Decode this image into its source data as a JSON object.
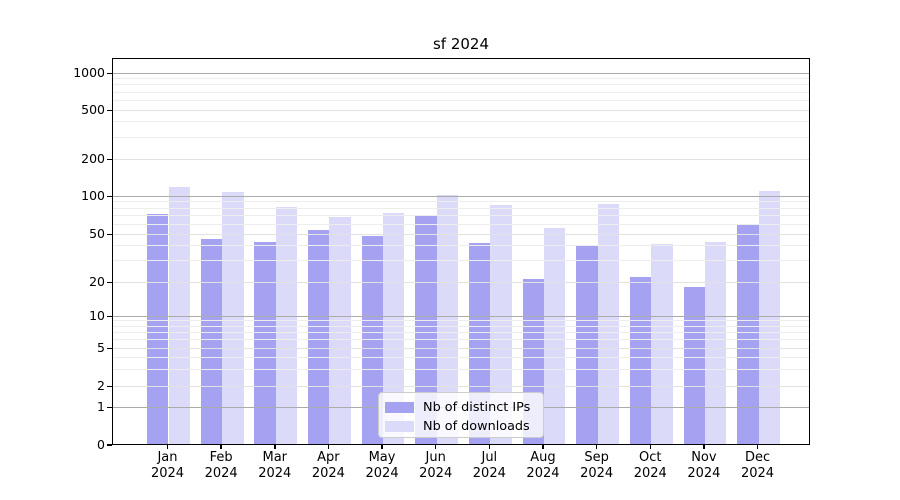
{
  "title": "sf 2024",
  "colors": {
    "distinct_ips": "#a5a3f1",
    "downloads": "#dbdaf9",
    "grid_major": "#ababab",
    "grid_mid": "#e2e2e2",
    "grid_minor": "#ededed",
    "axis": "#000000",
    "legend_border": "#cccccc"
  },
  "legend": {
    "items": [
      {
        "label": "Nb of distinct IPs",
        "series_key": "distinct_ips"
      },
      {
        "label": "Nb of downloads",
        "series_key": "downloads"
      }
    ]
  },
  "x_axis": {
    "months": [
      "Jan",
      "Feb",
      "Mar",
      "Apr",
      "May",
      "Jun",
      "Jul",
      "Aug",
      "Sep",
      "Oct",
      "Nov",
      "Dec"
    ],
    "year": "2024"
  },
  "y_axis": {
    "tick_labels": [
      "0",
      "1",
      "2",
      "5",
      "10",
      "20",
      "50",
      "100",
      "200",
      "500",
      "1000"
    ]
  },
  "chart_data": {
    "type": "bar",
    "title": "sf 2024",
    "x_categories": [
      "Jan 2024",
      "Feb 2024",
      "Mar 2024",
      "Apr 2024",
      "May 2024",
      "Jun 2024",
      "Jul 2024",
      "Aug 2024",
      "Sep 2024",
      "Oct 2024",
      "Nov 2024",
      "Dec 2024"
    ],
    "series": [
      {
        "name": "Nb of distinct IPs",
        "values": [
          75,
          47,
          45,
          56,
          50,
          73,
          44,
          22,
          41,
          23,
          19,
          61
        ]
      },
      {
        "name": "Nb of downloads",
        "values": [
          122,
          112,
          85,
          71,
          76,
          105,
          88,
          58,
          90,
          43,
          45,
          114
        ]
      }
    ],
    "y_scale": "symlog",
    "y_ticks": [
      0,
      1,
      2,
      5,
      10,
      20,
      50,
      100,
      200,
      500,
      1000
    ],
    "ylim": [
      0,
      1300
    ],
    "grid": true,
    "legend_position": "lower center"
  }
}
